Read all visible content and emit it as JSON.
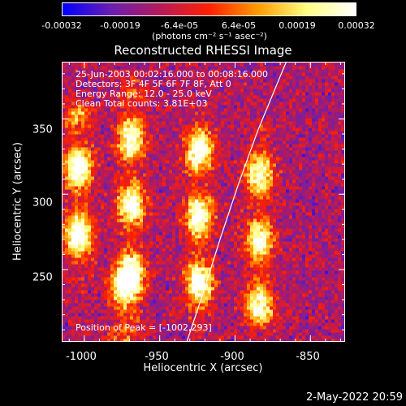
{
  "chart_data": {
    "type": "heatmap",
    "title": "Reconstructed RHESSI Image",
    "xlabel": "Heliocentric X (arcsec)",
    "ylabel": "Heliocentric Y (arcsec)",
    "xlim": [
      -1015,
      -827
    ],
    "ylim": [
      202,
      388
    ],
    "x_ticks": [
      "-1000",
      "-950",
      "-900",
      "-850"
    ],
    "x_tick_values": [
      -1000,
      -950,
      -900,
      -850
    ],
    "y_ticks": [
      "250",
      "300",
      "350"
    ],
    "y_tick_values": [
      250,
      300,
      350
    ],
    "colorbar": {
      "ticks": [
        "-0.00032",
        "-0.00019",
        "-6.4e-05",
        "6.4e-05",
        "0.00019",
        "0.00032"
      ],
      "tick_values": [
        -0.00032,
        -0.00019,
        -6.4e-05,
        6.4e-05,
        0.00019,
        0.00032
      ],
      "min": -0.00032,
      "max": 0.00032,
      "colors": [
        "#0000ff",
        "#6a1fb0",
        "#b51a5a",
        "#ff2000",
        "#ff9a00",
        "#ffff80",
        "#ffffff"
      ]
    },
    "limb": [
      [
        -932,
        202
      ],
      [
        -921,
        235
      ],
      [
        -910,
        270
      ],
      [
        -898,
        306
      ],
      [
        -885,
        342
      ],
      [
        -871,
        376
      ],
      [
        -866,
        388
      ]
    ],
    "bands": [
      {
        "x": -1005,
        "y0": 255,
        "y1": 345,
        "peak": 0.00032
      },
      {
        "x": -970,
        "y0": 230,
        "y1": 360,
        "peak": 0.00028
      },
      {
        "x": -925,
        "y0": 225,
        "y1": 340,
        "peak": 0.0003
      },
      {
        "x": -885,
        "y0": 220,
        "y1": 330,
        "peak": 0.00024
      },
      {
        "x": -975,
        "y0": 210,
        "y1": 240,
        "peak": 0.00018
      }
    ]
  },
  "colorbar_label": "(photons cm⁻² s⁻¹ asec⁻²)",
  "info": {
    "time": "25-Jun-2003 00:02:16.000 to 00:08:16.000",
    "detectors": "Detectors: 3F 4F 5F 6F 7F 8F, Att 0",
    "energy": "Energy Range: 12.0 - 25.0 keV",
    "clean": "Clean    Total counts: 3.81E+03"
  },
  "peak_text": "Position of Peak = [-1002,293]",
  "timestamp": "2-May-2022 20:59"
}
